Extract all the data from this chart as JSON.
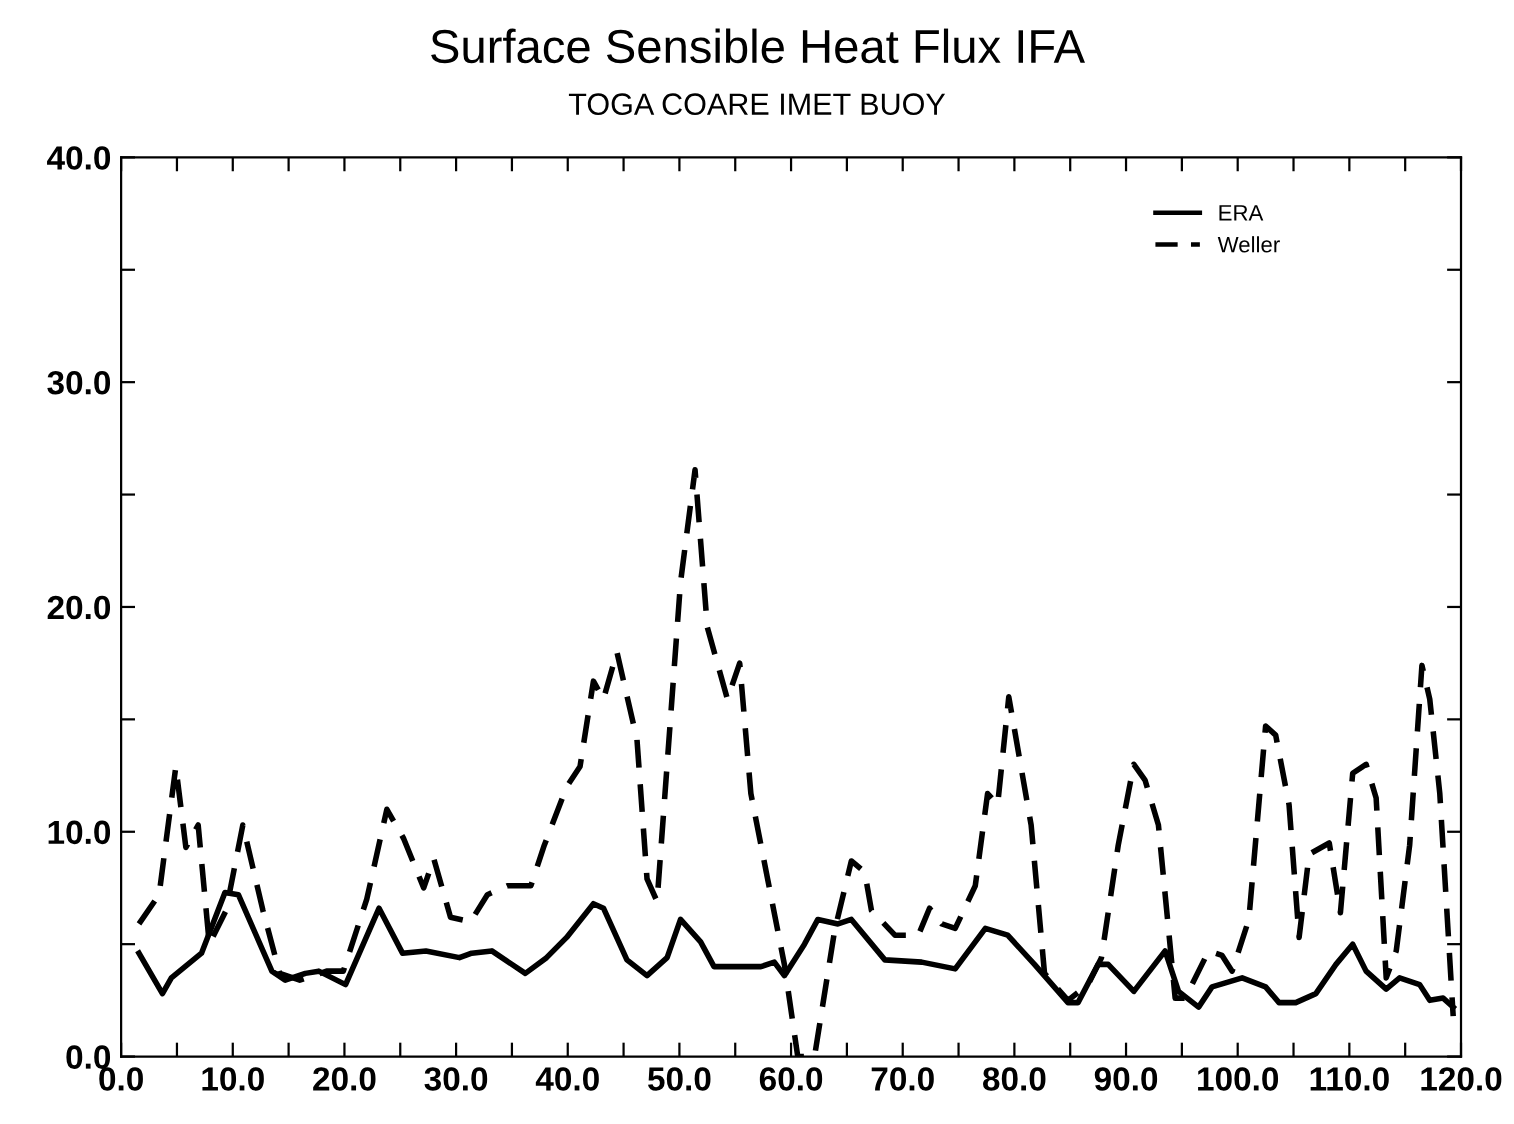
{
  "chart_data": {
    "type": "line",
    "title": "Surface Sensible Heat Flux IFA",
    "subtitle": "TOGA COARE IMET BUOY",
    "xlim": [
      0,
      120
    ],
    "ylim": [
      0,
      40
    ],
    "xticks": [
      {
        "value": 0,
        "label": "0.0"
      },
      {
        "value": 5,
        "label": null
      },
      {
        "value": 10,
        "label": "10.0"
      },
      {
        "value": 15,
        "label": null
      },
      {
        "value": 20,
        "label": "20.0"
      },
      {
        "value": 25,
        "label": null
      },
      {
        "value": 30,
        "label": "30.0"
      },
      {
        "value": 35,
        "label": null
      },
      {
        "value": 40,
        "label": "40.0"
      },
      {
        "value": 45,
        "label": null
      },
      {
        "value": 50,
        "label": "50.0"
      },
      {
        "value": 55,
        "label": null
      },
      {
        "value": 60,
        "label": "60.0"
      },
      {
        "value": 65,
        "label": null
      },
      {
        "value": 70,
        "label": "70.0"
      },
      {
        "value": 75,
        "label": null
      },
      {
        "value": 80,
        "label": "80.0"
      },
      {
        "value": 85,
        "label": null
      },
      {
        "value": 90,
        "label": "90.0"
      },
      {
        "value": 95,
        "label": null
      },
      {
        "value": 100,
        "label": "100.0"
      },
      {
        "value": 105,
        "label": null
      },
      {
        "value": 110,
        "label": "110.0"
      },
      {
        "value": 115,
        "label": null
      },
      {
        "value": 120,
        "label": "120.0"
      }
    ],
    "yticks": [
      {
        "value": 0,
        "label": "0.0"
      },
      {
        "value": 5,
        "label": null
      },
      {
        "value": 10,
        "label": "10.0"
      },
      {
        "value": 15,
        "label": null
      },
      {
        "value": 20,
        "label": "20.0"
      },
      {
        "value": 25,
        "label": null
      },
      {
        "value": 30,
        "label": "30.0"
      },
      {
        "value": 35,
        "label": null
      },
      {
        "value": 40,
        "label": "40.0"
      }
    ],
    "grid": false,
    "legend": "top right",
    "marker": "none",
    "series": [
      {
        "name": "ERA",
        "color": "#000000",
        "line_style": "solid",
        "x": [
          1.6,
          3.7,
          4.5,
          7.2,
          9.3,
          10.5,
          13.5,
          14.7,
          16.5,
          17.7,
          20.1,
          23.1,
          25.2,
          27.3,
          30.3,
          31.4,
          33.2,
          36.2,
          38.1,
          39.9,
          42.3,
          43.2,
          45.3,
          47.1,
          48.9,
          50.1,
          51.9,
          53.1,
          57.3,
          58.5,
          59.4,
          61.2,
          62.4,
          64.2,
          65.4,
          68.4,
          71.7,
          74.7,
          77.4,
          79.4,
          81.8,
          84.8,
          85.7,
          87.5,
          88.4,
          90.7,
          93.5,
          94.7,
          96.5,
          97.7,
          100.4,
          102.5,
          103.7,
          105.2,
          107.0,
          108.8,
          110.3,
          111.5,
          113.3,
          114.5,
          116.3,
          117.2,
          118.4,
          119.3
        ],
        "values": [
          4.6,
          2.8,
          3.5,
          4.6,
          7.3,
          7.2,
          3.8,
          3.4,
          3.7,
          3.8,
          3.2,
          6.6,
          4.6,
          4.7,
          4.4,
          4.6,
          4.7,
          3.7,
          4.4,
          5.3,
          6.8,
          6.6,
          4.3,
          3.6,
          4.4,
          6.1,
          5.1,
          4.0,
          4.0,
          4.2,
          3.6,
          5.0,
          6.1,
          5.9,
          6.1,
          4.3,
          4.2,
          3.9,
          5.7,
          5.4,
          4.1,
          2.4,
          2.4,
          4.1,
          4.1,
          2.9,
          4.7,
          2.9,
          2.2,
          3.1,
          3.5,
          3.1,
          2.4,
          2.4,
          2.8,
          4.1,
          5.0,
          3.8,
          3.0,
          3.5,
          3.2,
          2.5,
          2.6,
          2.2
        ]
      },
      {
        "name": "Weller",
        "color": "#000000",
        "line_style": "dashed",
        "x": [
          1.6,
          3.4,
          4.9,
          5.8,
          6.9,
          7.9,
          9.4,
          10.9,
          12.7,
          14.2,
          16.0,
          18.4,
          19.9,
          22.0,
          23.8,
          25.3,
          27.1,
          28.0,
          29.5,
          31.3,
          32.8,
          34.6,
          36.7,
          37.9,
          39.9,
          41.1,
          42.3,
          43.2,
          44.4,
          46.2,
          47.1,
          48.0,
          50.1,
          51.4,
          52.5,
          54.3,
          55.4,
          56.4,
          57.9,
          59.4,
          60.6,
          62.1,
          63.9,
          65.4,
          66.6,
          67.2,
          69.3,
          71.4,
          72.4,
          73.5,
          74.7,
          76.5,
          77.6,
          78.5,
          79.5,
          81.5,
          82.7,
          84.8,
          86.6,
          87.8,
          89.3,
          90.7,
          91.7,
          92.9,
          94.4,
          95.3,
          97.4,
          98.6,
          99.5,
          101.0,
          102.5,
          103.4,
          104.6,
          105.5,
          106.4,
          108.2,
          109.2,
          110.3,
          111.5,
          112.4,
          113.3,
          114.2,
          115.4,
          116.5,
          117.2,
          118.1,
          119.3
        ],
        "values": [
          5.9,
          7.2,
          12.9,
          9.3,
          10.3,
          5.0,
          6.5,
          10.3,
          6.5,
          3.7,
          3.4,
          3.8,
          3.8,
          7.0,
          11.0,
          9.7,
          7.5,
          8.8,
          6.2,
          6.0,
          7.2,
          7.6,
          7.6,
          9.4,
          12.0,
          12.9,
          16.7,
          15.9,
          18.0,
          14.1,
          7.9,
          6.9,
          21.1,
          26.1,
          19.1,
          15.9,
          17.5,
          11.7,
          7.9,
          4.1,
          0.0,
          0.0,
          5.6,
          8.7,
          8.2,
          6.5,
          5.4,
          5.4,
          6.6,
          5.9,
          5.7,
          7.6,
          11.7,
          11.2,
          16.0,
          10.3,
          3.7,
          2.5,
          3.2,
          4.4,
          9.4,
          13.0,
          12.3,
          10.3,
          2.6,
          2.6,
          4.7,
          4.5,
          3.8,
          6.1,
          14.7,
          14.3,
          11.2,
          5.3,
          9.0,
          9.5,
          6.4,
          12.6,
          13.0,
          11.5,
          3.5,
          4.7,
          9.4,
          17.4,
          15.9,
          11.7,
          1.8
        ]
      }
    ]
  }
}
